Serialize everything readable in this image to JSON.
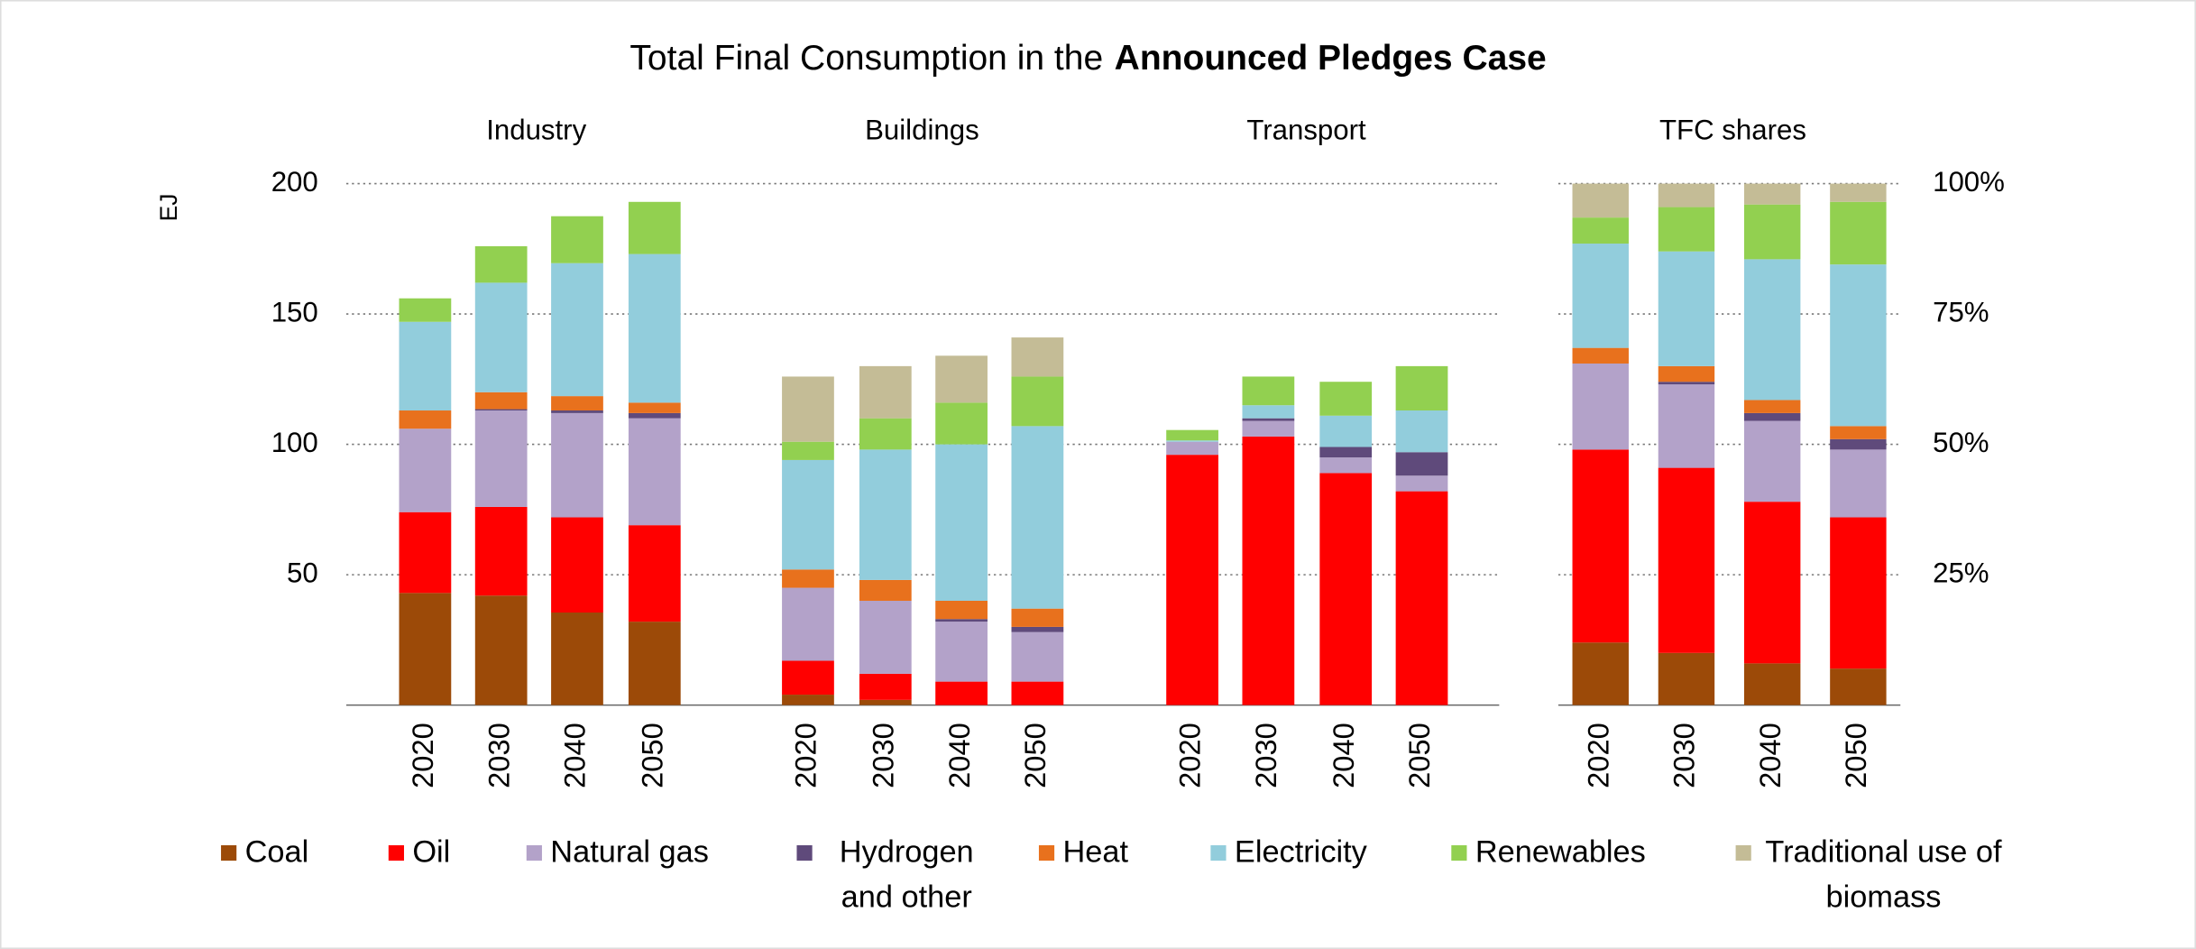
{
  "chart_data": {
    "type": "bar",
    "stacked": true,
    "title": "Total Final Consumption in the",
    "title_emphasis": "Announced Pledges Case",
    "ylabel": "EJ",
    "ylim": [
      0,
      200
    ],
    "yticks": [
      50,
      100,
      150,
      200
    ],
    "y2lim": [
      0,
      100
    ],
    "y2ticks": [
      {
        "value": 25,
        "label": "25%"
      },
      {
        "value": 50,
        "label": "50%"
      },
      {
        "value": 75,
        "label": "75%"
      },
      {
        "value": 100,
        "label": "100%"
      }
    ],
    "grid": true,
    "legend": "bottom",
    "categories": [
      "2020",
      "2030",
      "2040",
      "2050"
    ],
    "series": [
      {
        "name": "Coal",
        "color": "#9c4a08"
      },
      {
        "name": "Oil",
        "color": "#ff0000"
      },
      {
        "name": "Natural gas",
        "color": "#b3a2c9"
      },
      {
        "name": "Hydrogen and other",
        "color": "#5f4a7b"
      },
      {
        "name": "Heat",
        "color": "#e8711d"
      },
      {
        "name": "Electricity",
        "color": "#92cddc"
      },
      {
        "name": "Renewables",
        "color": "#92d050"
      },
      {
        "name": "Traditional use of biomass",
        "color": "#c4bc96"
      }
    ],
    "panels": [
      {
        "title": "Industry",
        "axis": "y",
        "values": [
          [
            43,
            42,
            35.5,
            32
          ],
          [
            31,
            34,
            36.5,
            37
          ],
          [
            32,
            37,
            40,
            41
          ],
          [
            0,
            0.5,
            1,
            2
          ],
          [
            7,
            6.5,
            5.5,
            4
          ],
          [
            34,
            42,
            51,
            57
          ],
          [
            9,
            14,
            18,
            20
          ],
          [
            0,
            0,
            0,
            0
          ]
        ]
      },
      {
        "title": "Buildings",
        "axis": "y",
        "values": [
          [
            4,
            2,
            0,
            0
          ],
          [
            13,
            10,
            9,
            9
          ],
          [
            28,
            28,
            23,
            19
          ],
          [
            0,
            0,
            1,
            2
          ],
          [
            7,
            8,
            7,
            7
          ],
          [
            42,
            50,
            60,
            70
          ],
          [
            7,
            12,
            16,
            19
          ],
          [
            25,
            20,
            18,
            15
          ]
        ]
      },
      {
        "title": "Transport",
        "axis": "y",
        "values": [
          [
            0,
            0,
            0,
            0
          ],
          [
            96,
            103,
            89,
            82
          ],
          [
            5,
            6,
            6,
            6
          ],
          [
            0,
            1,
            4,
            9
          ],
          [
            0,
            0,
            0,
            0
          ],
          [
            0.5,
            5,
            12,
            16
          ],
          [
            4,
            11,
            13,
            17
          ],
          [
            0,
            0,
            0,
            0
          ]
        ]
      },
      {
        "title": "TFC shares",
        "axis": "y2",
        "values": [
          [
            12,
            10,
            8,
            7
          ],
          [
            37,
            35.5,
            31,
            29
          ],
          [
            16.5,
            16,
            15.5,
            13
          ],
          [
            0,
            0.5,
            1.5,
            2
          ],
          [
            3,
            3,
            2.5,
            2.5
          ],
          [
            20,
            22,
            27,
            31
          ],
          [
            5,
            8.5,
            10.5,
            12
          ],
          [
            6.5,
            4.5,
            4,
            3.5
          ]
        ]
      }
    ]
  }
}
